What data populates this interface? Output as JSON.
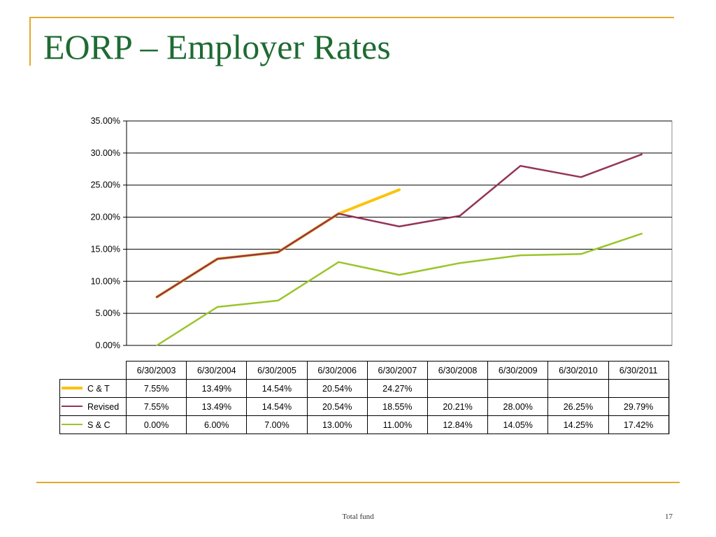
{
  "slide": {
    "title": "EORP – Employer Rates",
    "footer": "Total fund",
    "page_number": "17",
    "title_color": "#1e6b33",
    "frame_color": "#e3a92b"
  },
  "chart_data": {
    "type": "line",
    "categories": [
      "6/30/2003",
      "6/30/2004",
      "6/30/2005",
      "6/30/2006",
      "6/30/2007",
      "6/30/2008",
      "6/30/2009",
      "6/30/2010",
      "6/30/2011"
    ],
    "y_ticks": [
      "35.00%",
      "30.00%",
      "25.00%",
      "20.00%",
      "15.00%",
      "10.00%",
      "5.00%",
      "0.00%"
    ],
    "ylim": [
      0,
      35
    ],
    "grid": true,
    "series": [
      {
        "name": "C & T",
        "color": "#fcc30c",
        "values": [
          7.55,
          13.49,
          14.54,
          20.54,
          24.27,
          null,
          null,
          null,
          null
        ],
        "labels": [
          "7.55%",
          "13.49%",
          "14.54%",
          "20.54%",
          "24.27%",
          "",
          "",
          "",
          ""
        ]
      },
      {
        "name": "Revised",
        "color": "#953359",
        "values": [
          7.55,
          13.49,
          14.54,
          20.54,
          18.55,
          20.21,
          28.0,
          26.25,
          29.79
        ],
        "labels": [
          "7.55%",
          "13.49%",
          "14.54%",
          "20.54%",
          "18.55%",
          "20.21%",
          "28.00%",
          "26.25%",
          "29.79%"
        ]
      },
      {
        "name": "S & C",
        "color": "#9ac52a",
        "values": [
          0.0,
          6.0,
          7.0,
          13.0,
          11.0,
          12.84,
          14.05,
          14.25,
          17.42
        ],
        "labels": [
          "0.00%",
          "6.00%",
          "7.00%",
          "13.00%",
          "11.00%",
          "12.84%",
          "14.05%",
          "14.25%",
          "17.42%"
        ]
      }
    ]
  }
}
